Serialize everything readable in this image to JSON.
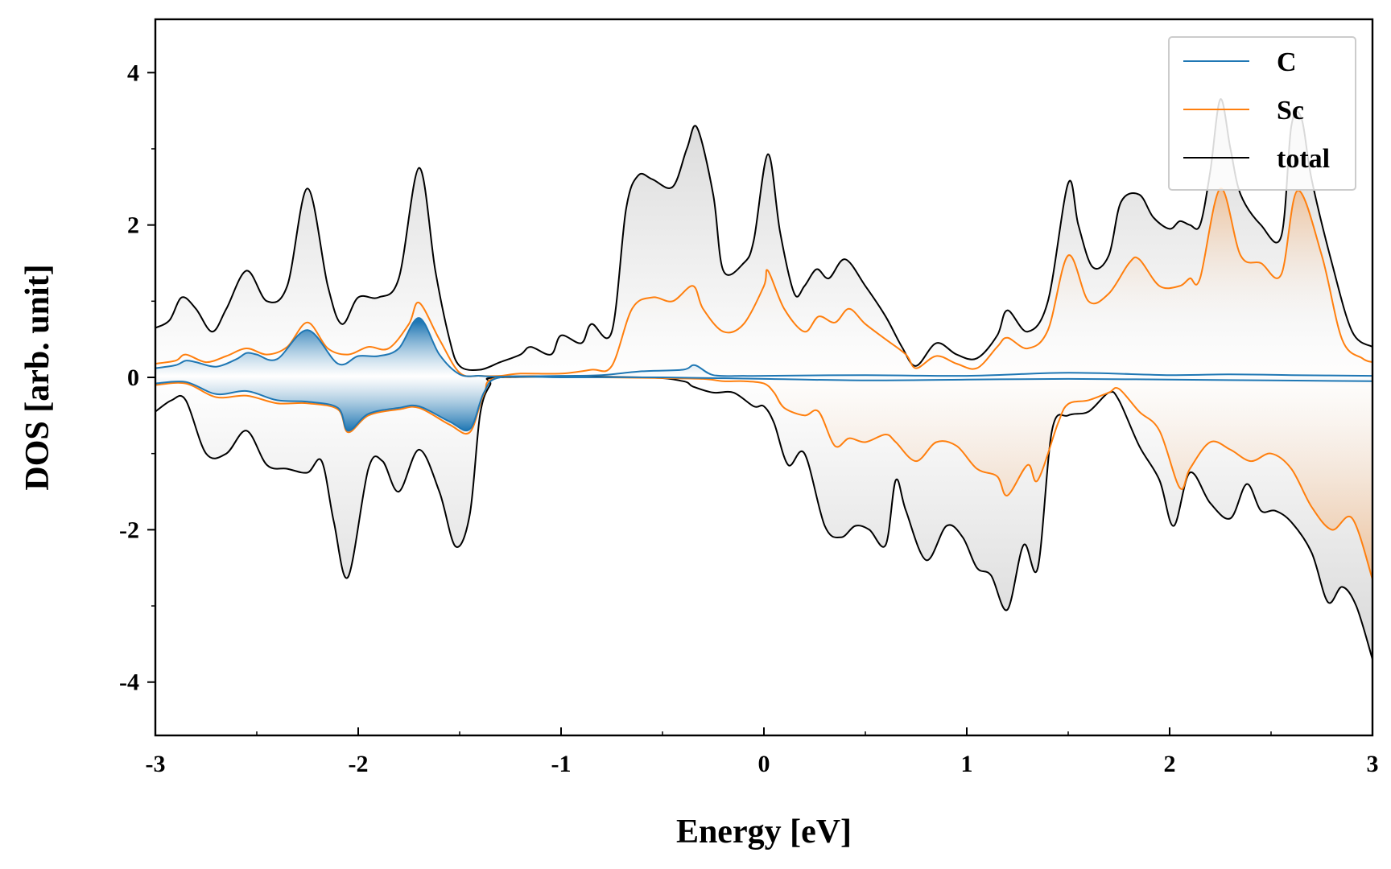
{
  "chart_data": {
    "type": "line",
    "title": "",
    "xlabel": "Energy [eV]",
    "ylabel": "DOS [arb. unit]",
    "xlim": [
      -3,
      3
    ],
    "ylim": [
      -4.7,
      4.7
    ],
    "xticks": [
      -3,
      -2,
      -1,
      0,
      1,
      2,
      3
    ],
    "yticks": [
      -4,
      -2,
      0,
      2,
      4
    ],
    "xtick_labels": [
      "-3",
      "-2",
      "-1",
      "0",
      "1",
      "2",
      "3"
    ],
    "ytick_labels": [
      "-4",
      "-2",
      "0",
      "2",
      "4"
    ],
    "legend_position": "top-right",
    "grid": false,
    "colors": {
      "C": "#1f77b4",
      "Sc": "#ff7f0e",
      "total": "#000000"
    },
    "series": [
      {
        "name": "C",
        "spin_up": {
          "x": [
            -3.0,
            -2.9,
            -2.85,
            -2.8,
            -2.7,
            -2.6,
            -2.55,
            -2.5,
            -2.4,
            -2.25,
            -2.1,
            -2.0,
            -1.9,
            -1.8,
            -1.7,
            -1.6,
            -1.5,
            -1.4,
            -1.3,
            -1.0,
            -0.8,
            -0.6,
            -0.4,
            -0.34,
            -0.25,
            -0.1,
            0.0,
            0.5,
            1.0,
            1.5,
            2.0,
            2.3,
            2.6,
            3.0
          ],
          "y": [
            0.12,
            0.16,
            0.22,
            0.2,
            0.14,
            0.24,
            0.32,
            0.3,
            0.24,
            0.62,
            0.18,
            0.28,
            0.28,
            0.38,
            0.78,
            0.3,
            0.04,
            0.02,
            0.01,
            0.02,
            0.03,
            0.08,
            0.1,
            0.16,
            0.03,
            0.02,
            0.02,
            0.03,
            0.02,
            0.06,
            0.03,
            0.04,
            0.03,
            0.02
          ]
        },
        "spin_down": {
          "x": [
            -3.0,
            -2.85,
            -2.7,
            -2.55,
            -2.4,
            -2.25,
            -2.1,
            -2.05,
            -1.95,
            -1.8,
            -1.7,
            -1.55,
            -1.45,
            -1.38,
            -1.3,
            -1.0,
            -0.5,
            0.0,
            0.5,
            1.0,
            1.5,
            2.0,
            2.5,
            3.0
          ],
          "y": [
            -0.08,
            -0.06,
            -0.22,
            -0.18,
            -0.3,
            -0.32,
            -0.4,
            -0.7,
            -0.48,
            -0.4,
            -0.38,
            -0.58,
            -0.68,
            -0.2,
            0.0,
            0.0,
            0.0,
            -0.02,
            -0.04,
            -0.03,
            -0.02,
            -0.03,
            -0.04,
            -0.05
          ]
        }
      },
      {
        "name": "Sc",
        "spin_up": {
          "x": [
            -3.0,
            -2.9,
            -2.85,
            -2.75,
            -2.65,
            -2.55,
            -2.45,
            -2.35,
            -2.25,
            -2.15,
            -2.05,
            -1.95,
            -1.85,
            -1.75,
            -1.7,
            -1.6,
            -1.5,
            -1.4,
            -1.3,
            -1.2,
            -1.0,
            -0.85,
            -0.75,
            -0.65,
            -0.55,
            -0.45,
            -0.35,
            -0.3,
            -0.2,
            -0.1,
            0.0,
            0.02,
            0.1,
            0.2,
            0.27,
            0.35,
            0.42,
            0.5,
            0.6,
            0.7,
            0.75,
            0.85,
            0.95,
            1.05,
            1.15,
            1.2,
            1.3,
            1.4,
            1.5,
            1.6,
            1.7,
            1.8,
            1.85,
            1.95,
            2.05,
            2.1,
            2.15,
            2.25,
            2.35,
            2.45,
            2.55,
            2.63,
            2.75,
            2.85,
            2.95,
            3.0
          ],
          "y": [
            0.18,
            0.22,
            0.3,
            0.2,
            0.28,
            0.38,
            0.3,
            0.4,
            0.72,
            0.38,
            0.3,
            0.4,
            0.38,
            0.7,
            0.98,
            0.5,
            0.06,
            0.02,
            0.02,
            0.05,
            0.05,
            0.1,
            0.15,
            0.9,
            1.05,
            1.0,
            1.2,
            0.9,
            0.6,
            0.7,
            1.2,
            1.4,
            0.9,
            0.6,
            0.8,
            0.72,
            0.9,
            0.7,
            0.5,
            0.3,
            0.12,
            0.28,
            0.18,
            0.12,
            0.4,
            0.52,
            0.38,
            0.62,
            1.6,
            1.0,
            1.1,
            1.5,
            1.55,
            1.2,
            1.2,
            1.3,
            1.3,
            2.48,
            1.6,
            1.5,
            1.35,
            2.45,
            1.6,
            0.5,
            0.25,
            0.2
          ]
        },
        "spin_down": {
          "x": [
            -3.0,
            -2.85,
            -2.7,
            -2.55,
            -2.4,
            -2.25,
            -2.1,
            -2.05,
            -1.95,
            -1.8,
            -1.7,
            -1.55,
            -1.45,
            -1.38,
            -1.3,
            -0.8,
            -0.5,
            -0.3,
            -0.2,
            -0.1,
            0.0,
            0.05,
            0.1,
            0.2,
            0.27,
            0.35,
            0.42,
            0.5,
            0.6,
            0.65,
            0.75,
            0.85,
            0.95,
            1.05,
            1.15,
            1.2,
            1.3,
            1.35,
            1.45,
            1.5,
            1.6,
            1.7,
            1.75,
            1.85,
            1.95,
            2.05,
            2.1,
            2.2,
            2.3,
            2.4,
            2.5,
            2.6,
            2.7,
            2.8,
            2.9,
            3.0
          ],
          "y": [
            -0.1,
            -0.08,
            -0.26,
            -0.24,
            -0.34,
            -0.34,
            -0.42,
            -0.72,
            -0.5,
            -0.42,
            -0.4,
            -0.62,
            -0.72,
            -0.22,
            0.0,
            0.0,
            -0.01,
            -0.02,
            -0.05,
            -0.05,
            -0.08,
            -0.2,
            -0.4,
            -0.5,
            -0.45,
            -0.9,
            -0.8,
            -0.85,
            -0.75,
            -0.85,
            -1.1,
            -0.85,
            -0.9,
            -1.2,
            -1.3,
            -1.55,
            -1.15,
            -1.35,
            -0.6,
            -0.35,
            -0.3,
            -0.2,
            -0.15,
            -0.45,
            -0.7,
            -1.45,
            -1.2,
            -0.85,
            -0.95,
            -1.1,
            -1.0,
            -1.2,
            -1.7,
            -2.0,
            -1.85,
            -2.65
          ]
        }
      },
      {
        "name": "total",
        "spin_up": {
          "x": [
            -3.0,
            -2.93,
            -2.87,
            -2.8,
            -2.72,
            -2.65,
            -2.55,
            -2.45,
            -2.35,
            -2.25,
            -2.15,
            -2.08,
            -2.0,
            -1.9,
            -1.8,
            -1.7,
            -1.62,
            -1.55,
            -1.5,
            -1.4,
            -1.3,
            -1.2,
            -1.15,
            -1.05,
            -1.0,
            -0.9,
            -0.85,
            -0.75,
            -0.68,
            -0.62,
            -0.55,
            -0.45,
            -0.38,
            -0.33,
            -0.25,
            -0.2,
            -0.1,
            -0.05,
            0.02,
            0.08,
            0.15,
            0.2,
            0.26,
            0.32,
            0.4,
            0.5,
            0.6,
            0.68,
            0.75,
            0.85,
            0.95,
            1.05,
            1.15,
            1.2,
            1.3,
            1.4,
            1.5,
            1.55,
            1.62,
            1.7,
            1.76,
            1.85,
            1.92,
            2.0,
            2.05,
            2.1,
            2.15,
            2.2,
            2.25,
            2.3,
            2.35,
            2.45,
            2.55,
            2.6,
            2.65,
            2.7,
            2.8,
            2.9,
            3.0
          ],
          "y": [
            0.65,
            0.75,
            1.05,
            0.9,
            0.6,
            0.9,
            1.4,
            1.0,
            1.2,
            2.48,
            1.2,
            0.7,
            1.05,
            1.05,
            1.3,
            2.75,
            1.4,
            0.5,
            0.15,
            0.1,
            0.2,
            0.3,
            0.4,
            0.3,
            0.55,
            0.45,
            0.7,
            0.6,
            2.2,
            2.65,
            2.6,
            2.5,
            3.0,
            3.28,
            2.4,
            1.4,
            1.5,
            1.8,
            2.93,
            1.9,
            1.1,
            1.2,
            1.42,
            1.3,
            1.55,
            1.2,
            0.8,
            0.4,
            0.15,
            0.45,
            0.3,
            0.25,
            0.55,
            0.88,
            0.6,
            1.0,
            2.55,
            2.0,
            1.45,
            1.6,
            2.3,
            2.4,
            2.1,
            1.95,
            2.05,
            2.0,
            2.0,
            2.7,
            3.65,
            3.0,
            2.4,
            2.0,
            1.85,
            3.3,
            3.4,
            2.6,
            1.5,
            0.6,
            0.4
          ]
        },
        "spin_down": {
          "x": [
            -3.0,
            -2.92,
            -2.85,
            -2.75,
            -2.65,
            -2.55,
            -2.45,
            -2.35,
            -2.25,
            -2.18,
            -2.12,
            -2.05,
            -1.95,
            -1.88,
            -1.8,
            -1.7,
            -1.6,
            -1.52,
            -1.45,
            -1.4,
            -1.35,
            -1.3,
            -0.6,
            -0.4,
            -0.35,
            -0.25,
            -0.15,
            -0.05,
            0.0,
            0.05,
            0.12,
            0.2,
            0.3,
            0.38,
            0.45,
            0.52,
            0.6,
            0.65,
            0.7,
            0.8,
            0.9,
            0.98,
            1.05,
            1.12,
            1.2,
            1.28,
            1.35,
            1.42,
            1.5,
            1.6,
            1.7,
            1.75,
            1.85,
            1.95,
            2.02,
            2.1,
            2.2,
            2.3,
            2.38,
            2.45,
            2.52,
            2.6,
            2.7,
            2.78,
            2.85,
            2.92,
            3.0
          ],
          "y": [
            -0.45,
            -0.3,
            -0.3,
            -1.0,
            -1.0,
            -0.7,
            -1.15,
            -1.2,
            -1.25,
            -1.1,
            -1.9,
            -2.62,
            -1.2,
            -1.1,
            -1.5,
            -0.95,
            -1.5,
            -2.22,
            -1.8,
            -0.5,
            -0.1,
            0.0,
            0.0,
            -0.05,
            -0.12,
            -0.2,
            -0.2,
            -0.38,
            -0.38,
            -0.6,
            -1.15,
            -1.0,
            -1.95,
            -2.1,
            -1.95,
            -2.0,
            -2.2,
            -1.35,
            -1.75,
            -2.4,
            -1.95,
            -2.1,
            -2.5,
            -2.6,
            -3.05,
            -2.2,
            -2.5,
            -0.7,
            -0.5,
            -0.45,
            -0.2,
            -0.3,
            -0.9,
            -1.35,
            -1.95,
            -1.25,
            -1.65,
            -1.85,
            -1.4,
            -1.75,
            -1.75,
            -1.9,
            -2.3,
            -2.95,
            -2.75,
            -3.0,
            -3.7
          ]
        }
      }
    ]
  }
}
